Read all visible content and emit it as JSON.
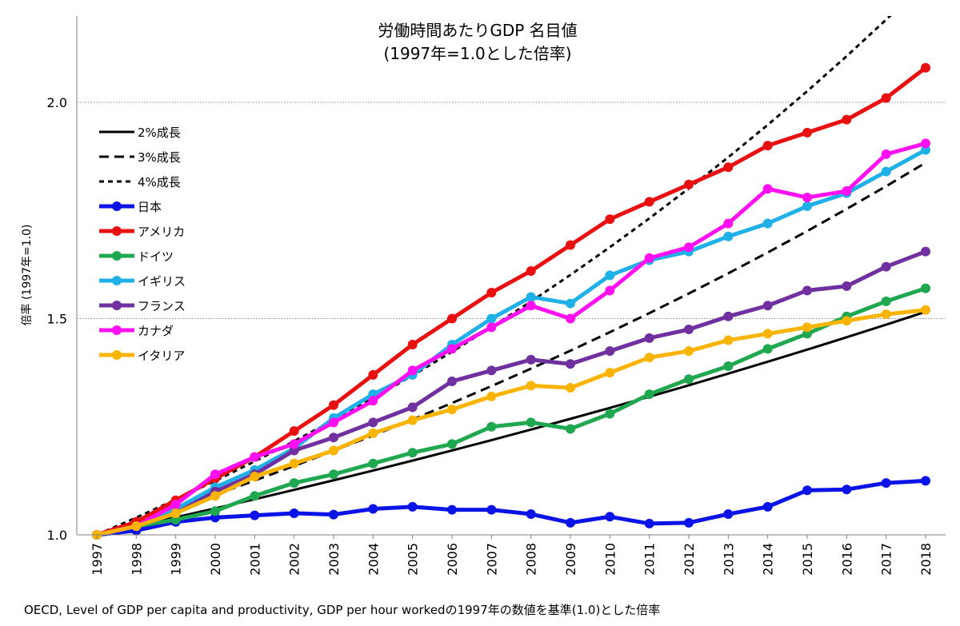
{
  "chart_data": {
    "type": "line",
    "title": "労働時間あたりGDP 名目値",
    "subtitle": "(1997年=1.0とした倍率)",
    "xlabel": "",
    "ylabel": "倍率 (1997年=1.0)",
    "ylim": [
      1.0,
      2.2
    ],
    "yticks": [
      "1.0",
      "1.5",
      "2.0"
    ],
    "ytick_values": [
      1.0,
      1.5,
      2.0
    ],
    "grid": "horizontal dotted at 1.5 and 2.0",
    "legend_position": "top-left",
    "x": [
      1997,
      1998,
      1999,
      2000,
      2001,
      2002,
      2003,
      2004,
      2005,
      2006,
      2007,
      2008,
      2009,
      2010,
      2011,
      2012,
      2013,
      2014,
      2015,
      2016,
      2017,
      2018
    ],
    "xticks": [
      "1997",
      "1998",
      "1999",
      "2000",
      "2001",
      "2002",
      "2003",
      "2004",
      "2005",
      "2006",
      "2007",
      "2008",
      "2009",
      "2010",
      "2011",
      "2012",
      "2013",
      "2014",
      "2015",
      "2016",
      "2017",
      "2018"
    ],
    "reference_lines": [
      {
        "name": "2%成長",
        "rate": 0.02,
        "style": "solid",
        "color": "#000000"
      },
      {
        "name": "3%成長",
        "rate": 0.03,
        "style": "dashed",
        "color": "#000000"
      },
      {
        "name": "4%成長",
        "rate": 0.04,
        "style": "dotted",
        "color": "#000000"
      }
    ],
    "series": [
      {
        "name": "日本",
        "color": "#0a14e6",
        "values": [
          1.0,
          1.01,
          1.03,
          1.04,
          1.045,
          1.05,
          1.047,
          1.06,
          1.065,
          1.058,
          1.058,
          1.048,
          1.028,
          1.042,
          1.026,
          1.028,
          1.048,
          1.065,
          1.103,
          1.105,
          1.12,
          1.125
        ]
      },
      {
        "name": "アメリカ",
        "color": "#e81010",
        "values": [
          1.0,
          1.03,
          1.08,
          1.13,
          1.18,
          1.24,
          1.3,
          1.37,
          1.44,
          1.5,
          1.56,
          1.61,
          1.67,
          1.73,
          1.77,
          1.81,
          1.85,
          1.9,
          1.93,
          1.96,
          2.01,
          2.08
        ]
      },
      {
        "name": "ドイツ",
        "color": "#20a850",
        "values": [
          1.0,
          1.02,
          1.035,
          1.055,
          1.09,
          1.12,
          1.14,
          1.165,
          1.19,
          1.21,
          1.25,
          1.26,
          1.245,
          1.28,
          1.325,
          1.36,
          1.39,
          1.43,
          1.465,
          1.505,
          1.54,
          1.57
        ]
      },
      {
        "name": "イギリス",
        "color": "#20b0e8",
        "values": [
          1.0,
          1.02,
          1.06,
          1.11,
          1.15,
          1.2,
          1.27,
          1.325,
          1.37,
          1.44,
          1.5,
          1.55,
          1.535,
          1.6,
          1.635,
          1.655,
          1.69,
          1.72,
          1.76,
          1.79,
          1.84,
          1.89
        ]
      },
      {
        "name": "フランス",
        "color": "#7030a0",
        "values": [
          1.0,
          1.02,
          1.05,
          1.1,
          1.14,
          1.195,
          1.225,
          1.26,
          1.295,
          1.355,
          1.38,
          1.405,
          1.395,
          1.425,
          1.455,
          1.475,
          1.505,
          1.53,
          1.565,
          1.575,
          1.62,
          1.655
        ]
      },
      {
        "name": "カナダ",
        "color": "#ff10f0",
        "values": [
          1.0,
          1.02,
          1.07,
          1.14,
          1.18,
          1.21,
          1.26,
          1.31,
          1.38,
          1.43,
          1.48,
          1.53,
          1.5,
          1.565,
          1.64,
          1.665,
          1.72,
          1.8,
          1.78,
          1.795,
          1.88,
          1.905
        ]
      },
      {
        "name": "イタリア",
        "color": "#f8b400",
        "values": [
          1.0,
          1.02,
          1.05,
          1.09,
          1.135,
          1.165,
          1.195,
          1.235,
          1.265,
          1.29,
          1.32,
          1.345,
          1.34,
          1.375,
          1.41,
          1.425,
          1.45,
          1.465,
          1.48,
          1.495,
          1.51,
          1.52
        ]
      }
    ]
  },
  "source_note": "OECD, Level of GDP per capita and productivity, GDP per hour workedの1997年の数値を基準(1.0)とした倍率"
}
